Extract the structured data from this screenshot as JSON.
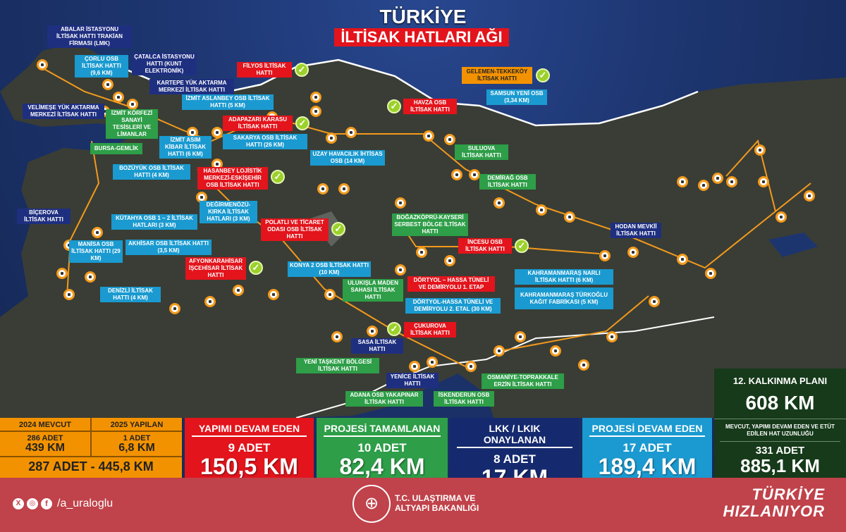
{
  "header": {
    "title": "TÜRKİYE",
    "subtitle": "İLTİSAK HATLARI AĞI"
  },
  "colors": {
    "red": "#e3141c",
    "green": "#2e9e48",
    "navy": "#1f2f80",
    "light_blue": "#1a9ad0",
    "orange": "#f39200",
    "dark_green": "#163a1a",
    "footer": "#c0424a"
  },
  "labels": [
    {
      "text": "ABALAR İSTASYONU İLTİSAK HATTI TRAKİAN FİRMASI (LMK)",
      "type": "navy"
    },
    {
      "text": "ÇORLU OSB İLTİSAK HATTI (9,6 Km)",
      "type": "lb"
    },
    {
      "text": "ÇATALCA İSTASYONU HATTI (KUNT ELEKTRONİK)",
      "type": "navy"
    },
    {
      "text": "KARTEPE YÜK AKTARMA MERKEZİ İLTİSAK HATTI",
      "type": "navy"
    },
    {
      "text": "İZMİT ASLANBEY OSB İLTİSAK HATTI (5 Km)",
      "type": "lb"
    },
    {
      "text": "FİLYOS İLTİSAK HATTI",
      "type": "red"
    },
    {
      "text": "ADAPAZARI KARASU İLTİSAK HATTI",
      "type": "red"
    },
    {
      "text": "SAKARYA OSB İLTİSAK HATTI (26 Km)",
      "type": "lb"
    },
    {
      "text": "VELİMEŞE YÜK AKTARMA MERKEZİ İLTİSAK HATTI",
      "type": "navy"
    },
    {
      "text": "İZMİT KÖRFEZİ SANAYİ TESİSLERİ VE LİMANLAR",
      "type": "grn"
    },
    {
      "text": "BURSA-GEMLİK",
      "type": "grn"
    },
    {
      "text": "İZMİT ASIM KİBAR İLTİSAK HATTI (6 Km)",
      "type": "lb"
    },
    {
      "text": "BOZÜYÜK OSB İLTİSAK HATTI (4 Km)",
      "type": "lb"
    },
    {
      "text": "HASANBEY LOJİSTİK MERKEZİ-ESKİŞEHİR OSB İLTİSAK HATTI",
      "type": "red"
    },
    {
      "text": "UZAY HAVACILIK İHTİSAS OSB (14 Km)",
      "type": "lb"
    },
    {
      "text": "HAVZA OSB İLTİSAK HATTI",
      "type": "red"
    },
    {
      "text": "GELEMEN-TEKKEKÖY İLTİSAK HATTI",
      "type": "org"
    },
    {
      "text": "SAMSUN YENİ OSB (3,34 Km)",
      "type": "lb"
    },
    {
      "text": "SULUOVA İLTİSAK HATTI",
      "type": "grn"
    },
    {
      "text": "DEMİRAĞ OSB İLTİSAK HATTI",
      "type": "grn"
    },
    {
      "text": "BİÇEROVA İLTİSAK HATTI",
      "type": "navy"
    },
    {
      "text": "KÜTAHYA OSB 1 – 2 İLTİSAK HATLARI (3 Km)",
      "type": "lb"
    },
    {
      "text": "DEĞİRMENÖZÜ-KIRKA İLTİSAK HATLARI (3 Km)",
      "type": "lb"
    },
    {
      "text": "POLATLI VE TİCARET ODASI OSB İLTİSAK HATTI",
      "type": "red"
    },
    {
      "text": "MANİSA OSB İLTİSAK HATTI (29 Km)",
      "type": "lb"
    },
    {
      "text": "AKHİSAR OSB İLTİSAK HATTI (3,5 Km)",
      "type": "lb"
    },
    {
      "text": "AFYONKARAHİSAR İŞCEHİSAR İLTİSAK HATTI",
      "type": "red"
    },
    {
      "text": "DENİZLİ İLTİSAK HATTI (4 Km)",
      "type": "lb"
    },
    {
      "text": "KONYA 2 OSB İLTİSAK HATTI (10 Km)",
      "type": "lb"
    },
    {
      "text": "BOĞAZKÖPRÜ-KAYSERİ SERBEST BÖLGE İLTİSAK HATTI",
      "type": "grn"
    },
    {
      "text": "İNCESU OSB İLTİSAK HATTI",
      "type": "red"
    },
    {
      "text": "HODAN MEVKİİ İLTİSAK HATTI",
      "type": "navy"
    },
    {
      "text": "KAHRAMANMARAŞ NARLI İLTİSAK HATTI (6 Km)",
      "type": "lb"
    },
    {
      "text": "KAHRAMANMARAŞ TÜRKOĞLU KAĞIT FABRİKASI (5 Km)",
      "type": "lb"
    },
    {
      "text": "ULUKIŞLA MADEN SAHASI İLTİSAK HATTI",
      "type": "grn"
    },
    {
      "text": "DÖRTYOL – HASSA TÜNELİ VE DEMİRYOLU 1. ETAP",
      "type": "red"
    },
    {
      "text": "DÖRTYOL-HASSA TÜNELİ VE DEMİRYOLU 2. ETAL (30 Km)",
      "type": "lb"
    },
    {
      "text": "ÇUKUROVA İLTİSAK HATTI",
      "type": "red"
    },
    {
      "text": "SASA İLTİSAK HATTI",
      "type": "navy"
    },
    {
      "text": "YENİ TAŞKENT BÖLGESİ İLTİSAK HATTI",
      "type": "grn"
    },
    {
      "text": "YENİCE İLTİSAK HATTI",
      "type": "navy"
    },
    {
      "text": "ADANA OSB YAKAPINAR İLTİSAK HATTI",
      "type": "grn"
    },
    {
      "text": "İSKENDERUN OSB İLTİSAK HATTI",
      "type": "grn"
    },
    {
      "text": "OSMANİYE-TOPRAKKALE ERZİN İLTİSAK HATTI",
      "type": "grn"
    }
  ],
  "completed_marker_icon": "check-circle-icon",
  "station_marker_icon": "train-icon",
  "port_icon": "anchor-icon",
  "stats": {
    "existing": {
      "h1": "2024 MEVCUT",
      "h2": "2025 YAPILAN",
      "c1a": "286 ADET",
      "c1b": "439 KM",
      "c2a": "1 ADET",
      "c2b": "6,8 KM",
      "total": "287 ADET - 445,8 KM"
    },
    "under_construction": {
      "title": "YAPIMI DEVAM EDEN",
      "count": "9 ADET",
      "km": "150,5 KM"
    },
    "project_completed": {
      "title": "PROJESİ TAMAMLANAN",
      "count": "10 ADET",
      "km": "82,4 KM"
    },
    "approved": {
      "title": "LKK / LKIK ONAYLANAN",
      "count": "8 ADET",
      "km": "17 KM"
    },
    "project_ongoing": {
      "title": "PROJESİ DEVAM EDEN",
      "count": "17 ADET",
      "km": "189,4 KM"
    },
    "plan": {
      "title": "12. KALKINMA PLANI",
      "km": "608 KM",
      "desc": "MEVCUT, YAPIMI DEVAM EDEN VE ETÜT EDİLEN HAT UZUNLUĞU",
      "count": "331 ADET",
      "total_km": "885,1 KM"
    }
  },
  "footer": {
    "handle": "/a_uraloglu",
    "ministry_line1": "T.C. ULAŞTIRMA VE",
    "ministry_line2": "ALTYAPI BAKANLIĞI",
    "slogan1": "TÜRKİYE",
    "slogan2": "HIZLANIYOR",
    "social_icons": [
      "x-icon",
      "instagram-icon",
      "facebook-icon"
    ]
  }
}
